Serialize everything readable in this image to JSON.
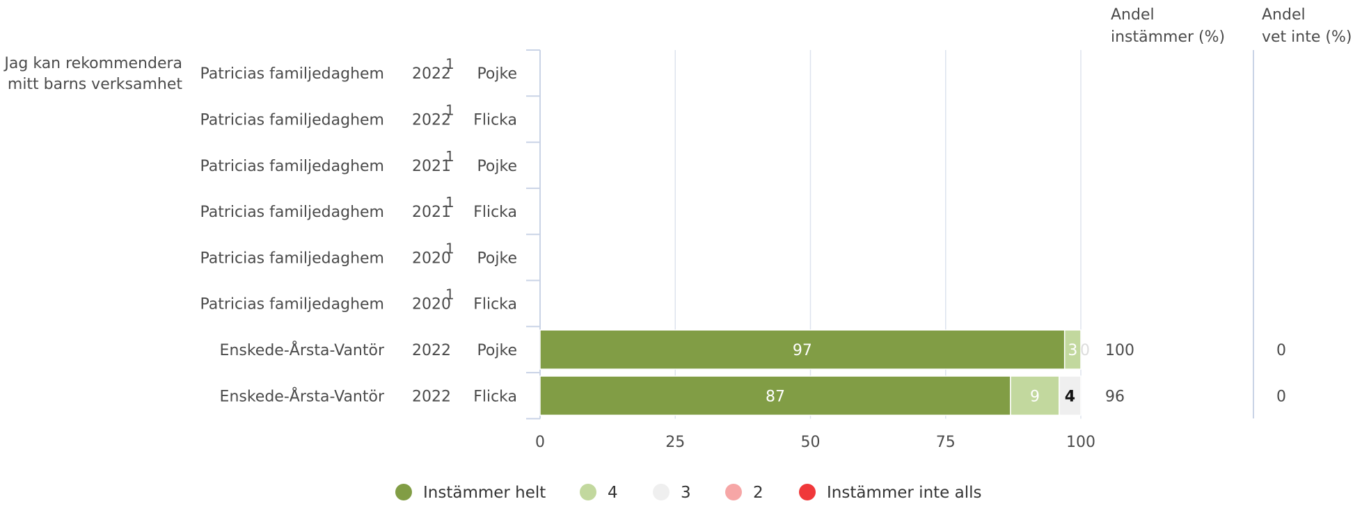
{
  "chart_data": {
    "type": "bar",
    "stacked": true,
    "orientation": "horizontal",
    "question": "Jag kan rekommendera mitt barns verksamhet",
    "columns": {
      "agree_header": [
        "Andel",
        "instämmer (%)"
      ],
      "dontknow_header": [
        "Andel",
        "vet inte (%)"
      ]
    },
    "xlim": [
      0,
      100
    ],
    "xticks": [
      0,
      25,
      50,
      75,
      100
    ],
    "grid": true,
    "legend_position": "bottom",
    "series": [
      {
        "name": "Instämmer helt",
        "color": "#819d45"
      },
      {
        "name": "4",
        "color": "#c2d89e"
      },
      {
        "name": "3",
        "color": "#efefef"
      },
      {
        "name": "2",
        "color": "#f6a6a6"
      },
      {
        "name": "Instämmer inte alls",
        "color": "#f0383a"
      }
    ],
    "rows": [
      {
        "unit": "Patricias familjedaghem",
        "year": "2022",
        "footnote": "1",
        "gender": "Pojke",
        "values": null,
        "agree": "",
        "dontknow": ""
      },
      {
        "unit": "Patricias familjedaghem",
        "year": "2022",
        "footnote": "1",
        "gender": "Flicka",
        "values": null,
        "agree": "",
        "dontknow": ""
      },
      {
        "unit": "Patricias familjedaghem",
        "year": "2021",
        "footnote": "1",
        "gender": "Pojke",
        "values": null,
        "agree": "",
        "dontknow": ""
      },
      {
        "unit": "Patricias familjedaghem",
        "year": "2021",
        "footnote": "1",
        "gender": "Flicka",
        "values": null,
        "agree": "",
        "dontknow": ""
      },
      {
        "unit": "Patricias familjedaghem",
        "year": "2020",
        "footnote": "1",
        "gender": "Pojke",
        "values": null,
        "agree": "",
        "dontknow": ""
      },
      {
        "unit": "Patricias familjedaghem",
        "year": "2020",
        "footnote": "1",
        "gender": "Flicka",
        "values": null,
        "agree": "",
        "dontknow": ""
      },
      {
        "unit": "Enskede-Årsta-Vantör",
        "year": "2022",
        "footnote": "",
        "gender": "Pojke",
        "values": [
          97,
          3,
          0,
          0,
          0
        ],
        "agree": "100",
        "dontknow": "0"
      },
      {
        "unit": "Enskede-Årsta-Vantör",
        "year": "2022",
        "footnote": "",
        "gender": "Flicka",
        "values": [
          87,
          9,
          4,
          0,
          0
        ],
        "agree": "96",
        "dontknow": "0"
      }
    ]
  }
}
